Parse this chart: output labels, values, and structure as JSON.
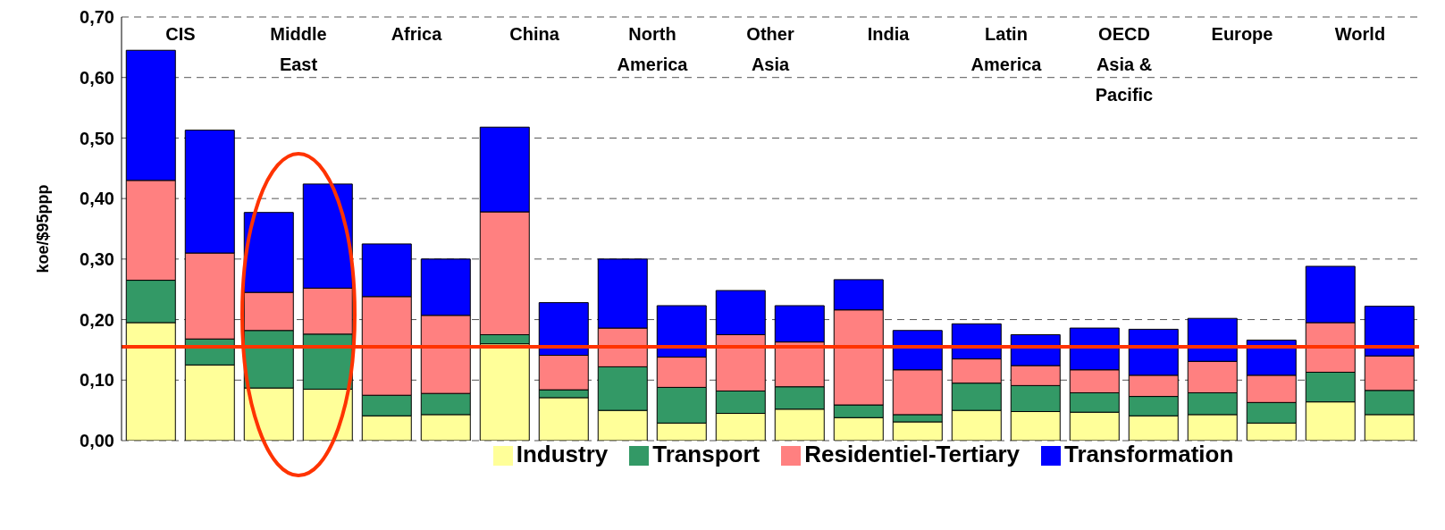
{
  "chart_data": {
    "type": "bar",
    "stacked": true,
    "ylabel": "koe/$95ppp",
    "categories": [
      "CIS",
      null,
      "Middle East",
      null,
      "Africa",
      null,
      "China",
      null,
      "North America",
      null,
      "Other Asia",
      null,
      "India",
      null,
      "Latin America",
      null,
      "OECD Asia & Pacific",
      null,
      "Europe",
      null,
      "World",
      null
    ],
    "series": [
      {
        "name": "Industry",
        "color": "#ffff99",
        "values": [
          0.195,
          0.125,
          0.087,
          0.085,
          0.041,
          0.043,
          0.16,
          0.071,
          0.05,
          0.029,
          0.045,
          0.052,
          0.038,
          0.031,
          0.05,
          0.048,
          0.047,
          0.041,
          0.043,
          0.029,
          0.064,
          0.043
        ]
      },
      {
        "name": "Transport",
        "color": "#339966",
        "values": [
          0.07,
          0.043,
          0.095,
          0.091,
          0.034,
          0.035,
          0.015,
          0.013,
          0.072,
          0.059,
          0.037,
          0.037,
          0.021,
          0.012,
          0.045,
          0.043,
          0.032,
          0.032,
          0.036,
          0.034,
          0.049,
          0.04
        ]
      },
      {
        "name": "Residentiel-Tertiary",
        "color": "#ff8080",
        "values": [
          0.165,
          0.142,
          0.063,
          0.076,
          0.163,
          0.129,
          0.203,
          0.057,
          0.064,
          0.05,
          0.093,
          0.074,
          0.157,
          0.074,
          0.04,
          0.033,
          0.038,
          0.035,
          0.052,
          0.045,
          0.082,
          0.057
        ]
      },
      {
        "name": "Transformation",
        "color": "#0000ff",
        "values": [
          0.215,
          0.203,
          0.132,
          0.172,
          0.087,
          0.093,
          0.14,
          0.087,
          0.114,
          0.085,
          0.073,
          0.06,
          0.05,
          0.065,
          0.058,
          0.051,
          0.069,
          0.076,
          0.071,
          0.058,
          0.093,
          0.082
        ]
      }
    ],
    "ylim": [
      0,
      0.7
    ],
    "yticks": [
      {
        "value": 0,
        "label": "0,00"
      },
      {
        "value": 0.1,
        "label": "0,10"
      },
      {
        "value": 0.2,
        "label": "0,20"
      },
      {
        "value": 0.3,
        "label": "0,30"
      },
      {
        "value": 0.4,
        "label": "0,40"
      },
      {
        "value": 0.5,
        "label": "0,50"
      },
      {
        "value": 0.6,
        "label": "0,60"
      },
      {
        "value": 0.7,
        "label": "0,70"
      }
    ],
    "ref_lines": [
      {
        "axis": "y",
        "value": 0.155,
        "color": "#ff3300"
      }
    ],
    "grid": "y",
    "legend": "bottom"
  }
}
